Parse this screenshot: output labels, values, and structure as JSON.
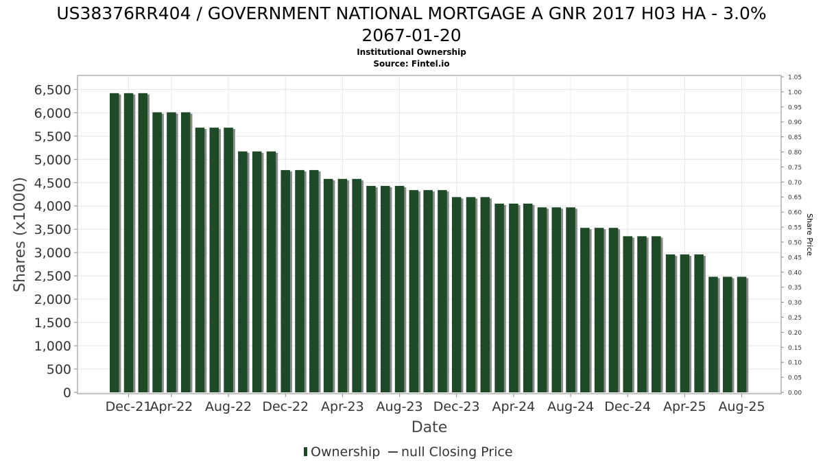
{
  "chart_data": {
    "type": "bar",
    "title_line1": "US38376RR404 / GOVERNMENT NATIONAL MORTGAGE A GNR 2017 H03 HA - 3.0%",
    "title_line2": "2067-01-20",
    "subtitle_line1": "Institutional Ownership",
    "subtitle_line2": "Source: Fintel.io",
    "xlabel": "Date",
    "ylabel": "Shares (x1000)",
    "y2label": "Share Price",
    "ylim": [
      0,
      6800
    ],
    "y2lim": [
      0,
      1.05
    ],
    "y_ticks": [
      "0",
      "500",
      "1,000",
      "1,500",
      "2,000",
      "2,500",
      "3,000",
      "3,500",
      "4,000",
      "4,500",
      "5,000",
      "5,500",
      "6,000",
      "6,500"
    ],
    "y_tick_values": [
      0,
      500,
      1000,
      1500,
      2000,
      2500,
      3000,
      3500,
      4000,
      4500,
      5000,
      5500,
      6000,
      6500
    ],
    "y2_ticks": [
      "0.00",
      "0.05",
      "0.10",
      "0.15",
      "0.20",
      "0.25",
      "0.30",
      "0.35",
      "0.40",
      "0.45",
      "0.50",
      "0.55",
      "0.60",
      "0.65",
      "0.70",
      "0.75",
      "0.80",
      "0.85",
      "0.90",
      "0.95",
      "1.00",
      "1.05"
    ],
    "y2_tick_values": [
      0,
      0.05,
      0.1,
      0.15,
      0.2,
      0.25,
      0.3,
      0.35,
      0.4,
      0.45,
      0.5,
      0.55,
      0.6,
      0.65,
      0.7,
      0.75,
      0.8,
      0.85,
      0.9,
      0.95,
      1.0,
      1.05
    ],
    "x_ticks": [
      "Dec-21",
      "Apr-22",
      "Aug-22",
      "Dec-22",
      "Apr-23",
      "Aug-23",
      "Dec-23",
      "Apr-24",
      "Aug-24",
      "Dec-24",
      "Apr-25",
      "Aug-25"
    ],
    "x_tick_bar_index": [
      1,
      4,
      8,
      12,
      16,
      20,
      24,
      28,
      32,
      36,
      40,
      44
    ],
    "series": [
      {
        "name": "Ownership",
        "color": "#1e4a28",
        "values": [
          6420,
          6420,
          6420,
          6010,
          6010,
          6010,
          5680,
          5680,
          5680,
          5170,
          5170,
          5170,
          4770,
          4770,
          4770,
          4580,
          4580,
          4580,
          4430,
          4430,
          4430,
          4340,
          4340,
          4340,
          4190,
          4190,
          4190,
          4050,
          4050,
          4050,
          3970,
          3970,
          3970,
          3530,
          3530,
          3530,
          3350,
          3350,
          3350,
          2960,
          2960,
          2960,
          2480,
          2480,
          2480
        ]
      }
    ],
    "legend": [
      {
        "label": "Ownership",
        "color": "#1e4a28"
      },
      {
        "label": "null Closing Price",
        "color": "#444444"
      }
    ],
    "legend_position": "bottom",
    "grid": true
  }
}
